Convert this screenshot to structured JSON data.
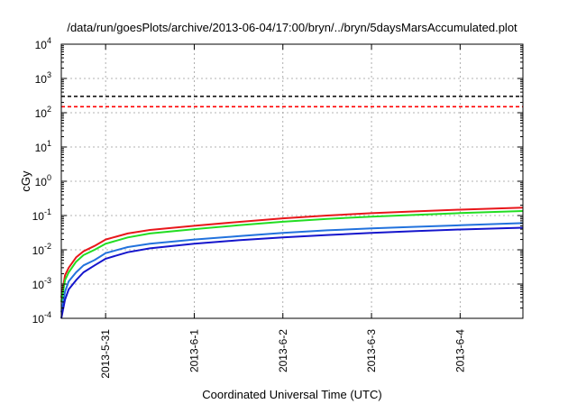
{
  "chart_data": {
    "type": "line",
    "title": "/data/run/goesPlots/archive/2013-06-04/17:00/bryn/../bryn/5daysMarsAccumulated.plot",
    "xlabel": "Coordinated Universal Time (UTC)",
    "ylabel": "cGy",
    "y_scale": "log",
    "xlim": [
      "2013-05-30 12:00",
      "2013-06-04 17:00"
    ],
    "ylim": [
      0.0001,
      10000
    ],
    "x_ticks": [
      "2013-5-31",
      "2013-6-1",
      "2013-6-2",
      "2013-6-3",
      "2013-6-4"
    ],
    "y_ticks": [
      {
        "base": "10",
        "exp": "-4"
      },
      {
        "base": "10",
        "exp": "-3"
      },
      {
        "base": "10",
        "exp": "-2"
      },
      {
        "base": "10",
        "exp": "-1"
      },
      {
        "base": "10",
        "exp": "0"
      },
      {
        "base": "10",
        "exp": "1"
      },
      {
        "base": "10",
        "exp": "2"
      },
      {
        "base": "10",
        "exp": "3"
      },
      {
        "base": "10",
        "exp": "4"
      }
    ],
    "grid": true,
    "reference_lines": [
      {
        "color": "#000000",
        "style": "dashed",
        "y": 300
      },
      {
        "color": "#ff0000",
        "style": "dashed",
        "y": 150
      }
    ],
    "series": [
      {
        "color": "#e8171b",
        "x": [
          "2013-05-30 12:00",
          "2013-05-30 13:00",
          "2013-05-30 14:00",
          "2013-05-30 16:00",
          "2013-05-30 18:00",
          "2013-05-30 21:00",
          "2013-05-31 00:00",
          "2013-05-31 06:00",
          "2013-05-31 12:00",
          "2013-06-01 00:00",
          "2013-06-01 12:00",
          "2013-06-02 00:00",
          "2013-06-02 12:00",
          "2013-06-03 00:00",
          "2013-06-03 12:00",
          "2013-06-04 00:00",
          "2013-06-04 17:00"
        ],
        "y": [
          0.0004,
          0.0018,
          0.003,
          0.006,
          0.009,
          0.013,
          0.02,
          0.03,
          0.038,
          0.05,
          0.065,
          0.083,
          0.1,
          0.117,
          0.132,
          0.148,
          0.17
        ]
      },
      {
        "color": "#22dd22",
        "x": [
          "2013-05-30 12:00",
          "2013-05-30 13:00",
          "2013-05-30 14:00",
          "2013-05-30 16:00",
          "2013-05-30 18:00",
          "2013-05-30 21:00",
          "2013-05-31 00:00",
          "2013-05-31 06:00",
          "2013-05-31 12:00",
          "2013-06-01 00:00",
          "2013-06-01 12:00",
          "2013-06-02 00:00",
          "2013-06-02 12:00",
          "2013-06-03 00:00",
          "2013-06-03 12:00",
          "2013-06-04 00:00",
          "2013-06-04 17:00"
        ],
        "y": [
          0.0003,
          0.0013,
          0.0022,
          0.0045,
          0.007,
          0.01,
          0.015,
          0.023,
          0.03,
          0.04,
          0.052,
          0.066,
          0.08,
          0.093,
          0.105,
          0.118,
          0.135
        ]
      },
      {
        "color": "#2272dd",
        "x": [
          "2013-05-30 12:00",
          "2013-05-30 13:00",
          "2013-05-30 14:00",
          "2013-05-30 16:00",
          "2013-05-30 18:00",
          "2013-05-30 21:00",
          "2013-05-31 00:00",
          "2013-05-31 06:00",
          "2013-05-31 12:00",
          "2013-06-01 00:00",
          "2013-06-01 12:00",
          "2013-06-02 00:00",
          "2013-06-02 12:00",
          "2013-06-03 00:00",
          "2013-06-03 12:00",
          "2013-06-04 00:00",
          "2013-06-04 17:00"
        ],
        "y": [
          0.00015,
          0.0006,
          0.0012,
          0.0022,
          0.0035,
          0.005,
          0.008,
          0.012,
          0.015,
          0.02,
          0.025,
          0.031,
          0.037,
          0.042,
          0.047,
          0.052,
          0.06
        ]
      },
      {
        "color": "#1515cc",
        "x": [
          "2013-05-30 12:00",
          "2013-05-30 13:00",
          "2013-05-30 14:00",
          "2013-05-30 16:00",
          "2013-05-30 18:00",
          "2013-05-30 21:00",
          "2013-05-31 00:00",
          "2013-05-31 06:00",
          "2013-05-31 12:00",
          "2013-06-01 00:00",
          "2013-06-01 12:00",
          "2013-06-02 00:00",
          "2013-06-02 12:00",
          "2013-06-03 00:00",
          "2013-06-03 12:00",
          "2013-06-04 00:00",
          "2013-06-04 17:00"
        ],
        "y": [
          0.0001,
          0.00035,
          0.0007,
          0.0013,
          0.0022,
          0.0035,
          0.0055,
          0.0085,
          0.011,
          0.015,
          0.019,
          0.023,
          0.027,
          0.031,
          0.035,
          0.039,
          0.044
        ]
      }
    ]
  }
}
